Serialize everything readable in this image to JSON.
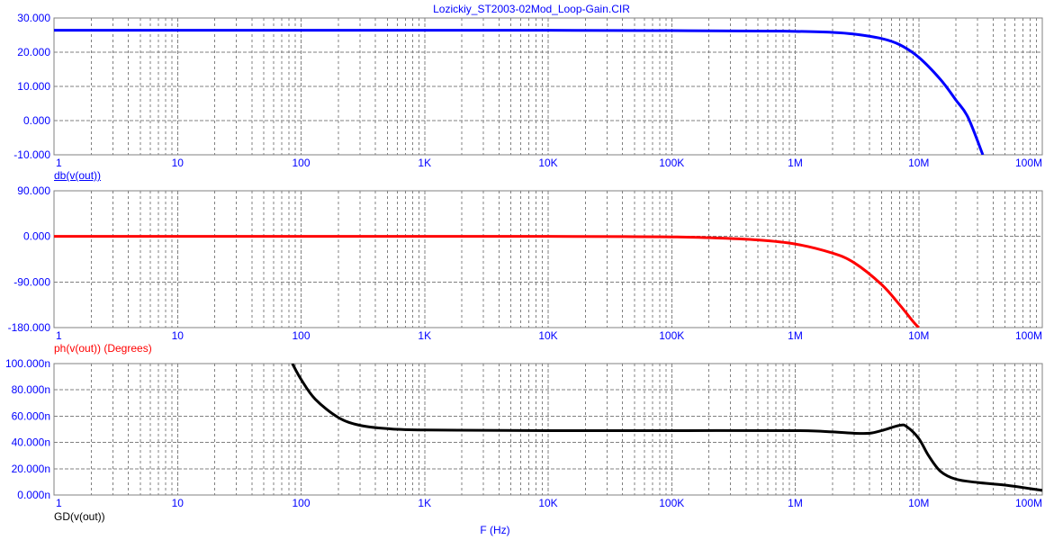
{
  "title": "Lozickiy_ST2003-02Mod_Loop-Gain.CIR",
  "x_axis_label": "F (Hz)",
  "x_tick_labels": [
    "1",
    "10",
    "100",
    "1K",
    "10K",
    "100K",
    "1M",
    "10M",
    "100M"
  ],
  "colors": {
    "axis_text": "#0000ff",
    "grid": "#808080",
    "db": "#0000ff",
    "phase": "#ff0000",
    "gd": "#000000"
  },
  "chart_data": [
    {
      "type": "line",
      "title": "",
      "xlabel": "",
      "ylabel": "",
      "xscale": "log",
      "xlim": [
        1,
        100000000
      ],
      "ylim": [
        -10,
        30
      ],
      "yticks": [
        -10,
        0,
        10,
        20,
        30
      ],
      "y_tick_labels": [
        "-10.000",
        "0.000",
        "10.000",
        "20.000",
        "30.000"
      ],
      "grid": true,
      "series": [
        {
          "name": "db(v(out))",
          "color": "#0000ff",
          "x": [
            1,
            100,
            10000,
            100000,
            500000,
            1000000,
            2000000,
            3000000,
            5000000,
            7000000,
            10000000,
            15000000,
            20000000,
            25000000,
            33000000
          ],
          "y": [
            26.4,
            26.4,
            26.4,
            26.3,
            26.2,
            26.1,
            25.8,
            25.3,
            24.0,
            22.2,
            18.5,
            12.0,
            6.0,
            1.0,
            -10.0
          ]
        }
      ]
    },
    {
      "type": "line",
      "title": "",
      "xlabel": "",
      "ylabel": "",
      "xscale": "log",
      "xlim": [
        1,
        100000000
      ],
      "ylim": [
        -180,
        90
      ],
      "yticks": [
        -180,
        -90,
        0,
        90
      ],
      "y_tick_labels": [
        "-180.000",
        "-90.000",
        "0.000",
        "90.000"
      ],
      "grid": true,
      "series": [
        {
          "name": "ph(v(out)) (Degrees)",
          "color": "#ff0000",
          "x": [
            1,
            10000,
            50000,
            100000,
            200000,
            500000,
            1000000,
            2000000,
            3000000,
            5000000,
            7000000,
            9000000,
            10000000
          ],
          "y": [
            0,
            0,
            -0.5,
            -1,
            -2.5,
            -7,
            -15,
            -33,
            -52,
            -95,
            -135,
            -168,
            -180
          ]
        }
      ]
    },
    {
      "type": "line",
      "title": "",
      "xlabel": "F (Hz)",
      "ylabel": "",
      "xscale": "log",
      "xlim": [
        1,
        100000000
      ],
      "ylim": [
        0,
        100
      ],
      "yticks": [
        0,
        20,
        40,
        60,
        80,
        100
      ],
      "y_tick_labels": [
        "0.000n",
        "20.000n",
        "40.000n",
        "60.000n",
        "80.000n",
        "100.000n"
      ],
      "grid": true,
      "series": [
        {
          "name": "GD(v(out))",
          "color": "#000000",
          "x": [
            85,
            100,
            130,
            200,
            300,
            500,
            1000,
            10000,
            100000,
            1000000,
            2000000,
            3000000,
            4000000,
            5000000,
            7000000,
            8000000,
            10000000,
            12000000,
            15000000,
            20000000,
            30000000,
            50000000,
            100000000
          ],
          "y": [
            100,
            88,
            73,
            59,
            53,
            50.5,
            49.5,
            49,
            49,
            49,
            48,
            47,
            47,
            49,
            53,
            52,
            43,
            30,
            18,
            12,
            9.5,
            7.5,
            3.5
          ]
        }
      ]
    }
  ]
}
